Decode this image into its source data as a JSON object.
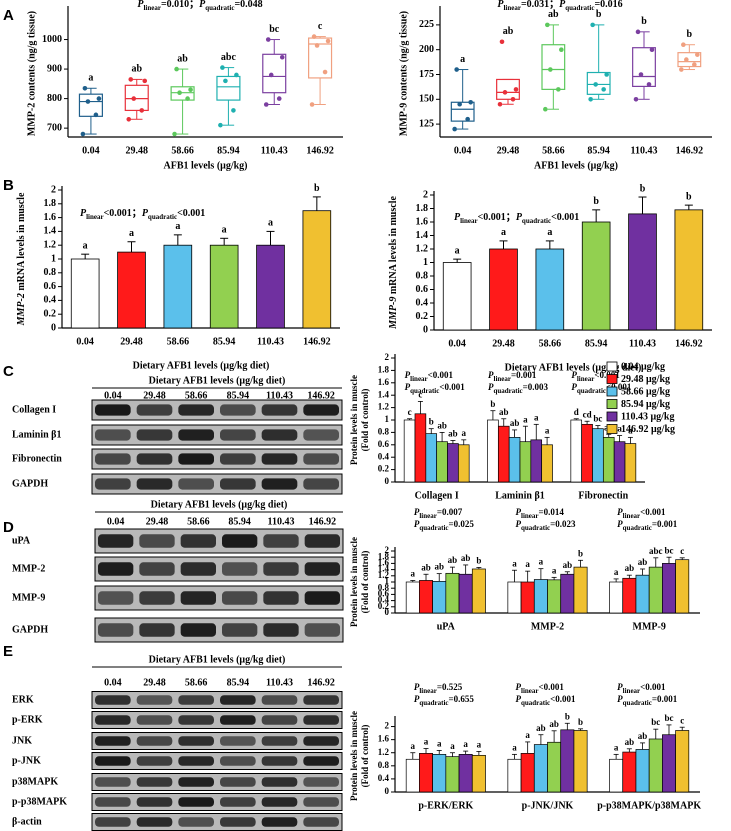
{
  "panels": [
    "A",
    "B",
    "C",
    "D",
    "E"
  ],
  "blots": [
    {
      "header": "Dietary AFB1 levels (μg/kg diet)",
      "lanes": [
        "0.04",
        "29.48",
        "58.66",
        "85.94",
        "110.43",
        "146.92"
      ],
      "rows": [
        "Collagen I",
        "Laminin β1",
        "Fibronectin",
        "GAPDH"
      ]
    },
    {
      "header": "Dietary AFB1 levels (μg/kg diet)",
      "lanes": [
        "0.04",
        "29.48",
        "58.66",
        "85.94",
        "110.43",
        "146.92"
      ],
      "rows": [
        "uPA",
        "MMP-2",
        "MMP-9",
        "GAPDH"
      ]
    },
    {
      "header": "Dietary AFB1 levels (μg/kg diet)",
      "lanes": [
        "0.04",
        "29.48",
        "58.66",
        "85.94",
        "110.43",
        "146.92"
      ],
      "rows": [
        "ERK",
        "p-ERK",
        "JNK",
        "p-JNK",
        "p38MAPK",
        "p-p38MAPK",
        "β-actin"
      ]
    }
  ],
  "chart_data": [
    {
      "type": "box",
      "stats": [
        {
          "p": "P",
          "sub": "linear",
          "text": "=0.010；"
        },
        {
          "p": "P",
          "sub": "quadratic",
          "text": "=0.048"
        }
      ],
      "y_label": "MMP-2 contents  (ng/g tissue)",
      "x_label": "AFB1 levels (μg/kg)",
      "categories": [
        "0.04",
        "29.48",
        "58.66",
        "85.94",
        "110.43",
        "146.92"
      ],
      "colors": [
        "#1f5f8b",
        "#e8303a",
        "#5cc85c",
        "#1fb0b0",
        "#7b3fa0",
        "#f0a080"
      ],
      "letters": [
        "a",
        "ab",
        "ab",
        "abc",
        "bc",
        "c"
      ],
      "boxes": [
        {
          "whisker": [
            680,
            835
          ],
          "q1": 740,
          "median": 790,
          "q3": 815,
          "points": [
            680,
            745,
            790,
            800,
            835
          ]
        },
        {
          "whisker": [
            730,
            865
          ],
          "q1": 760,
          "median": 800,
          "q3": 845,
          "points": [
            730,
            760,
            800,
            860,
            865
          ]
        },
        {
          "whisker": [
            680,
            900
          ],
          "q1": 795,
          "median": 820,
          "q3": 840,
          "points": [
            680,
            800,
            820,
            830,
            900
          ]
        },
        {
          "whisker": [
            710,
            905
          ],
          "q1": 795,
          "median": 840,
          "q3": 875,
          "points": [
            710,
            760,
            860,
            880,
            905
          ]
        },
        {
          "whisker": [
            780,
            1000
          ],
          "q1": 820,
          "median": 875,
          "q3": 950,
          "points": [
            780,
            800,
            880,
            940,
            1000
          ]
        },
        {
          "whisker": [
            780,
            1010
          ],
          "q1": 870,
          "median": 985,
          "q3": 1005,
          "points": [
            780,
            890,
            980,
            995,
            1010
          ]
        }
      ],
      "ylim": [
        670,
        1100
      ],
      "yticks": [
        700,
        800,
        900,
        1000
      ]
    },
    {
      "type": "box",
      "stats": [
        {
          "p": "P",
          "sub": "linear",
          "text": "=0.031；"
        },
        {
          "p": "P",
          "sub": "quadratic",
          "text": "=0.016"
        }
      ],
      "y_label": "MMP-9 contents (ng/g tissue)",
      "x_label": "AFB1 levels (μg/kg)",
      "categories": [
        "0.04",
        "29.48",
        "58.66",
        "85.94",
        "110.43",
        "146.92"
      ],
      "colors": [
        "#1f5f8b",
        "#e8303a",
        "#5cc85c",
        "#1fb0b0",
        "#7b3fa0",
        "#f0a080"
      ],
      "letters": [
        "a",
        "ab",
        "ab",
        "b",
        "b",
        "b"
      ],
      "boxes": [
        {
          "whisker": [
            120,
            180
          ],
          "q1": 128,
          "median": 140,
          "q3": 147,
          "points": [
            120,
            130,
            145,
            147,
            180
          ]
        },
        {
          "whisker": [
            145,
            170
          ],
          "q1": 150,
          "median": 157,
          "q3": 170,
          "points": [
            145,
            150,
            157,
            160,
            208
          ]
        },
        {
          "whisker": [
            140,
            225
          ],
          "q1": 160,
          "median": 180,
          "q3": 205,
          "points": [
            140,
            160,
            180,
            200,
            225
          ]
        },
        {
          "whisker": [
            150,
            225
          ],
          "q1": 155,
          "median": 165,
          "q3": 177,
          "points": [
            150,
            160,
            165,
            175,
            225
          ]
        },
        {
          "whisker": [
            150,
            218
          ],
          "q1": 163,
          "median": 173,
          "q3": 202,
          "points": [
            150,
            165,
            175,
            200,
            218
          ]
        },
        {
          "whisker": [
            180,
            205
          ],
          "q1": 183,
          "median": 188,
          "q3": 197,
          "points": [
            180,
            185,
            190,
            195,
            205
          ]
        }
      ],
      "ylim": [
        112,
        240
      ],
      "yticks": [
        125,
        150,
        175,
        200,
        225
      ]
    },
    {
      "type": "bar",
      "stats": [
        {
          "p": "P",
          "sub": "linear",
          "text": "<0.001；"
        },
        {
          "p": "P",
          "sub": "quadratic",
          "text": "<0.001"
        }
      ],
      "y_label_italic": "MMP-2",
      "y_label": " mRNA levels in muscle",
      "x_label": "Dietary AFB1 levels (μg/kg diet)",
      "categories": [
        "0.04",
        "29.48",
        "58.66",
        "85.94",
        "110.43",
        "146.92"
      ],
      "colors": [
        "#ffffff",
        "#ff1a1a",
        "#5bc0eb",
        "#92d050",
        "#7030a0",
        "#f0c030"
      ],
      "values": [
        1.0,
        1.1,
        1.2,
        1.2,
        1.2,
        1.7
      ],
      "errors": [
        0.07,
        0.15,
        0.15,
        0.1,
        0.2,
        0.2
      ],
      "letters": [
        "a",
        "a",
        "a",
        "a",
        "a",
        "b"
      ],
      "ylim": [
        0,
        2
      ],
      "yticks": [
        0,
        0.2,
        0.4,
        0.6,
        0.8,
        1,
        1.2,
        1.4,
        1.6,
        1.8,
        2
      ]
    },
    {
      "type": "bar",
      "stats": [
        {
          "p": "P",
          "sub": "linear",
          "text": "<0.001；"
        },
        {
          "p": "P",
          "sub": "quadratic",
          "text": "<0.001"
        }
      ],
      "y_label_italic": "MMP-9",
      "y_label": " mRNA levels in muscle",
      "x_label": "Dietary AFB1 levels (μg/kg diet)",
      "categories": [
        "0.04",
        "29.48",
        "58.66",
        "85.94",
        "110.43",
        "146.92"
      ],
      "colors": [
        "#ffffff",
        "#ff1a1a",
        "#5bc0eb",
        "#92d050",
        "#7030a0",
        "#f0c030"
      ],
      "values": [
        1.0,
        1.2,
        1.2,
        1.6,
        1.72,
        1.78
      ],
      "errors": [
        0.05,
        0.12,
        0.12,
        0.18,
        0.25,
        0.07
      ],
      "letters": [
        "a",
        "a",
        "a",
        "b",
        "b",
        "b"
      ],
      "ylim": [
        0,
        2
      ],
      "yticks": [
        0,
        0.2,
        0.4,
        0.6,
        0.8,
        1,
        1.2,
        1.4,
        1.6,
        1.8,
        2
      ]
    },
    {
      "type": "grouped_bar",
      "y_label": [
        "Protein levels in muscle",
        "(Fold of control)"
      ],
      "categories": [
        "Collagen I",
        "Laminin β1",
        "Fibronectin"
      ],
      "group_stats": [
        [
          {
            "p": "P",
            "sub": "linear",
            "text": "<0.001"
          },
          {
            "p": "P",
            "sub": "quadratic",
            "text": "<0.001"
          }
        ],
        [
          {
            "p": "P",
            "sub": "linear",
            "text": "=0.001"
          },
          {
            "p": "P",
            "sub": "quadratic",
            "text": "=0.003"
          }
        ],
        [
          {
            "p": "P",
            "sub": "linear",
            "text": "<0.001"
          },
          {
            "p": "P",
            "sub": "quadratic",
            "text": "<0.001"
          }
        ]
      ],
      "series": [
        {
          "name": "0.04 μg/kg",
          "color": "#ffffff",
          "values": [
            1.0,
            1.0,
            1.0
          ],
          "errors": [
            0.02,
            0.15,
            0.02
          ],
          "letters": [
            "c",
            "b",
            "d"
          ]
        },
        {
          "name": "29.48 μg/kg",
          "color": "#ff1a1a",
          "values": [
            1.1,
            0.9,
            0.93
          ],
          "errors": [
            0.2,
            0.12,
            0.05
          ],
          "letters": [
            "c",
            "ab",
            "cd"
          ]
        },
        {
          "name": "58.66 μg/kg",
          "color": "#5bc0eb",
          "values": [
            0.78,
            0.72,
            0.86
          ],
          "errors": [
            0.08,
            0.12,
            0.05
          ],
          "letters": [
            "b",
            "ab",
            "bc"
          ]
        },
        {
          "name": "85.94 μg/kg",
          "color": "#92d050",
          "values": [
            0.65,
            0.65,
            0.72
          ],
          "errors": [
            0.15,
            0.25,
            0.05
          ],
          "letters": [
            "ab",
            "a",
            "ab"
          ]
        },
        {
          "name": "110.43 μg/kg",
          "color": "#7030a0",
          "values": [
            0.62,
            0.68,
            0.65
          ],
          "errors": [
            0.05,
            0.25,
            0.1
          ],
          "letters": [
            "ab",
            "a",
            "a"
          ]
        },
        {
          "name": "146.92 μg/kg",
          "color": "#f0c030",
          "values": [
            0.6,
            0.6,
            0.62
          ],
          "errors": [
            0.08,
            0.12,
            0.1
          ],
          "letters": [
            "a",
            "a",
            "a"
          ]
        }
      ],
      "ylim": [
        0,
        2
      ],
      "yticks": [
        0,
        0.2,
        0.4,
        0.6,
        0.8,
        1,
        1.2,
        1.4,
        1.6,
        1.8,
        2
      ]
    },
    {
      "type": "grouped_bar",
      "y_label": [
        "Protein levels in muscle",
        "(Fold of control)"
      ],
      "categories": [
        "uPA",
        "MMP-2",
        "MMP-9"
      ],
      "group_stats": [
        [
          {
            "p": "P",
            "sub": "linear",
            "text": "=0.007"
          },
          {
            "p": "P",
            "sub": "quadratic",
            "text": "=0.025"
          }
        ],
        [
          {
            "p": "P",
            "sub": "linear",
            "text": "=0.014"
          },
          {
            "p": "P",
            "sub": "quadratic",
            "text": "=0.023"
          }
        ],
        [
          {
            "p": "P",
            "sub": "linear",
            "text": "<0.001"
          },
          {
            "p": "P",
            "sub": "quadratic",
            "text": "=0.001"
          }
        ]
      ],
      "series": [
        {
          "color": "#ffffff",
          "values": [
            1.0,
            1.0,
            1.0
          ],
          "errors": [
            0.05,
            0.38,
            0.1
          ],
          "letters": [
            "a",
            "a",
            "a"
          ]
        },
        {
          "color": "#ff1a1a",
          "values": [
            1.05,
            1.0,
            1.12
          ],
          "errors": [
            0.2,
            0.35,
            0.1
          ],
          "letters": [
            "ab",
            "a",
            "ab"
          ]
        },
        {
          "color": "#5bc0eb",
          "values": [
            1.02,
            1.08,
            1.22
          ],
          "errors": [
            0.25,
            0.35,
            0.2
          ],
          "letters": [
            "ab",
            "a",
            "ab"
          ]
        },
        {
          "color": "#92d050",
          "values": [
            1.28,
            1.07,
            1.48
          ],
          "errors": [
            0.2,
            0.08,
            0.3
          ],
          "letters": [
            "ab",
            "a",
            "abc"
          ]
        },
        {
          "color": "#7030a0",
          "values": [
            1.25,
            1.25,
            1.6
          ],
          "errors": [
            0.3,
            0.08,
            0.2
          ],
          "letters": [
            "ab",
            "ab",
            "bc"
          ]
        },
        {
          "color": "#f0c030",
          "values": [
            1.42,
            1.48,
            1.72
          ],
          "errors": [
            0.05,
            0.22,
            0.06
          ],
          "letters": [
            "b",
            "b",
            "c"
          ]
        }
      ],
      "ylim": [
        0,
        2
      ],
      "yticks": [
        0,
        0.2,
        0.4,
        0.6,
        0.8,
        1,
        1.2,
        1.4,
        1.6,
        1.8,
        2
      ]
    },
    {
      "type": "grouped_bar",
      "y_label": [
        "Protein levels in muscle",
        "(Fold of control)"
      ],
      "categories": [
        "p-ERK/ERK",
        "p-JNK/JNK",
        "p-p38MAPK/p38MAPK"
      ],
      "group_stats": [
        [
          {
            "p": "P",
            "sub": "linear",
            "text": "=0.525"
          },
          {
            "p": "P",
            "sub": "quadratic",
            "text": "=0.655"
          }
        ],
        [
          {
            "p": "P",
            "sub": "linear",
            "text": "<0.001"
          },
          {
            "p": "P",
            "sub": "quadratic",
            "text": "<0.001"
          }
        ],
        [
          {
            "p": "P",
            "sub": "linear",
            "text": "<0.001"
          },
          {
            "p": "P",
            "sub": "quadratic",
            "text": "=0.001"
          }
        ]
      ],
      "series": [
        {
          "color": "#ffffff",
          "values": [
            1.0,
            1.0,
            1.0
          ],
          "errors": [
            0.2,
            0.15,
            0.15
          ],
          "letters": [
            "a",
            "a",
            "a"
          ]
        },
        {
          "color": "#ff1a1a",
          "values": [
            1.18,
            1.18,
            1.22
          ],
          "errors": [
            0.15,
            0.35,
            0.1
          ],
          "letters": [
            "a",
            "a",
            "ab"
          ]
        },
        {
          "color": "#5bc0eb",
          "values": [
            1.15,
            1.45,
            1.3
          ],
          "errors": [
            0.12,
            0.3,
            0.2
          ],
          "letters": [
            "a",
            "ab",
            "ab"
          ]
        },
        {
          "color": "#92d050",
          "values": [
            1.08,
            1.52,
            1.62
          ],
          "errors": [
            0.12,
            0.35,
            0.3
          ],
          "letters": [
            "a",
            "ab",
            "bc"
          ]
        },
        {
          "color": "#7030a0",
          "values": [
            1.15,
            1.9,
            1.75
          ],
          "errors": [
            0.1,
            0.2,
            0.3
          ],
          "letters": [
            "a",
            "b",
            "bc"
          ]
        },
        {
          "color": "#f0c030",
          "values": [
            1.12,
            1.88,
            1.88
          ],
          "errors": [
            0.12,
            0.05,
            0.1
          ],
          "letters": [
            "a",
            "b",
            "c"
          ]
        }
      ],
      "ylim": [
        0,
        2.2
      ],
      "yticks": [
        0,
        0.4,
        0.8,
        1.2,
        1.6,
        2
      ]
    }
  ]
}
